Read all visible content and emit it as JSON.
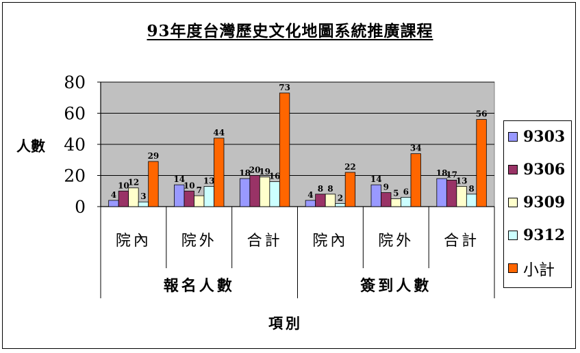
{
  "chart_data": {
    "type": "bar",
    "title": "93年度台灣歷史文化地圖系統推廣課程",
    "xlabel": "項別",
    "ylabel": "人數",
    "ylim": [
      0,
      80
    ],
    "yticks": [
      "0",
      "20",
      "40",
      "60",
      "80"
    ],
    "categories": [
      "院內",
      "院外",
      "合計",
      "院內",
      "院外",
      "合計"
    ],
    "groups": [
      "報名人數",
      "簽到人數"
    ],
    "series": [
      {
        "name": "9303",
        "color": "#9999FF",
        "values": [
          4,
          14,
          18,
          4,
          14,
          18
        ]
      },
      {
        "name": "9306",
        "color": "#993366",
        "values": [
          10,
          10,
          20,
          8,
          9,
          17
        ]
      },
      {
        "name": "9309",
        "color": "#FFFFCC",
        "values": [
          12,
          7,
          19,
          8,
          5,
          13
        ]
      },
      {
        "name": "9312",
        "color": "#CCFFFF",
        "values": [
          3,
          13,
          16,
          2,
          6,
          8
        ]
      },
      {
        "name": "小計",
        "color": "#FF6600",
        "values": [
          29,
          44,
          73,
          22,
          34,
          56
        ]
      }
    ],
    "plot_background": "#C0C0C0",
    "grid": true,
    "legend_position": "right"
  }
}
